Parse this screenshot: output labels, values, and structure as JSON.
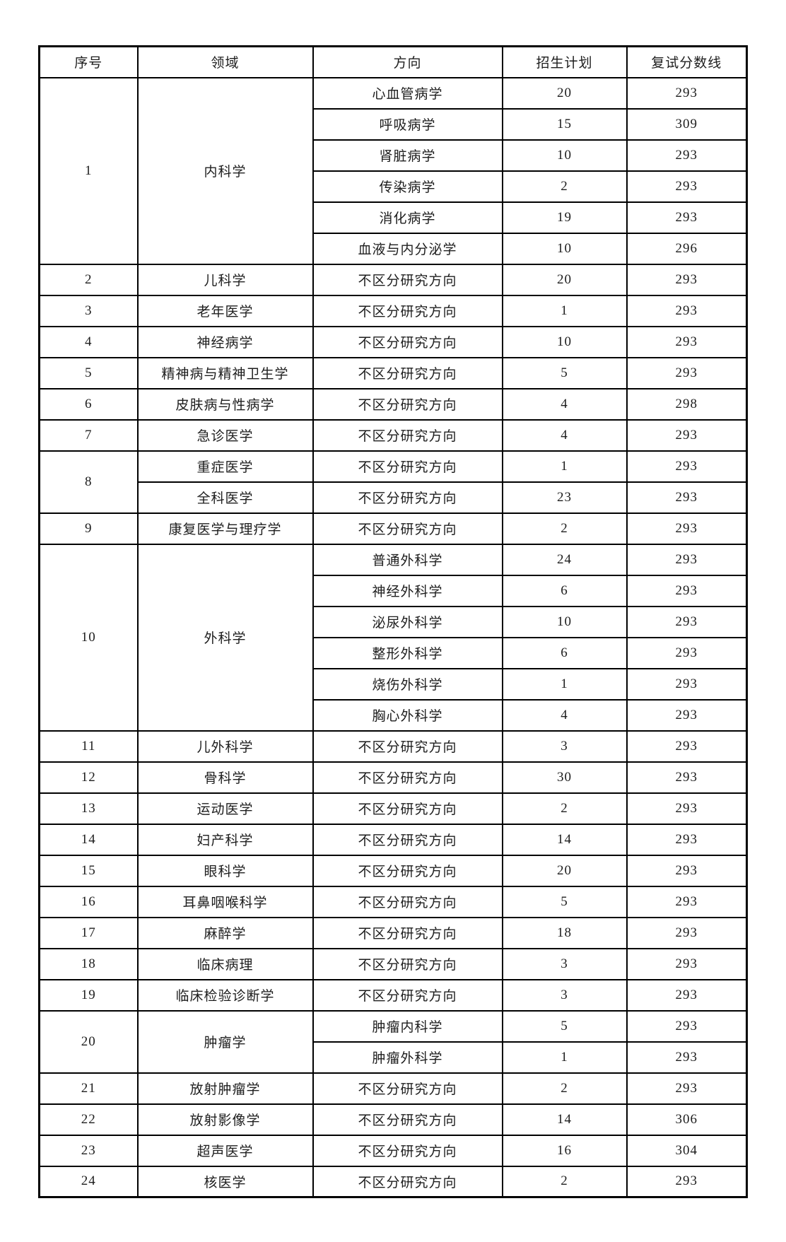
{
  "colors": {
    "border": "#000000",
    "text": "#1d1d1d",
    "background": "#ffffff"
  },
  "table": {
    "columns": [
      "序号",
      "领域",
      "方向",
      "招生计划",
      "复试分数线"
    ],
    "rows": [
      {
        "no": "1",
        "field": "内科学",
        "subs": [
          {
            "dir": "心血管病学",
            "plan": "20",
            "score": "293"
          },
          {
            "dir": "呼吸病学",
            "plan": "15",
            "score": "309"
          },
          {
            "dir": "肾脏病学",
            "plan": "10",
            "score": "293"
          },
          {
            "dir": "传染病学",
            "plan": "2",
            "score": "293"
          },
          {
            "dir": "消化病学",
            "plan": "19",
            "score": "293"
          },
          {
            "dir": "血液与内分泌学",
            "plan": "10",
            "score": "296"
          }
        ]
      },
      {
        "no": "2",
        "field": "儿科学",
        "subs": [
          {
            "dir": "不区分研究方向",
            "plan": "20",
            "score": "293"
          }
        ]
      },
      {
        "no": "3",
        "field": "老年医学",
        "subs": [
          {
            "dir": "不区分研究方向",
            "plan": "1",
            "score": "293"
          }
        ]
      },
      {
        "no": "4",
        "field": "神经病学",
        "subs": [
          {
            "dir": "不区分研究方向",
            "plan": "10",
            "score": "293"
          }
        ]
      },
      {
        "no": "5",
        "field": "精神病与精神卫生学",
        "subs": [
          {
            "dir": "不区分研究方向",
            "plan": "5",
            "score": "293"
          }
        ]
      },
      {
        "no": "6",
        "field": "皮肤病与性病学",
        "subs": [
          {
            "dir": "不区分研究方向",
            "plan": "4",
            "score": "298"
          }
        ]
      },
      {
        "no": "7",
        "field": "急诊医学",
        "subs": [
          {
            "dir": "不区分研究方向",
            "plan": "4",
            "score": "293"
          }
        ]
      },
      {
        "no": "8",
        "field": null,
        "subs": [
          {
            "field": "重症医学",
            "dir": "不区分研究方向",
            "plan": "1",
            "score": "293"
          },
          {
            "field": "全科医学",
            "dir": "不区分研究方向",
            "plan": "23",
            "score": "293"
          }
        ]
      },
      {
        "no": "9",
        "field": "康复医学与理疗学",
        "subs": [
          {
            "dir": "不区分研究方向",
            "plan": "2",
            "score": "293"
          }
        ]
      },
      {
        "no": "10",
        "field": "外科学",
        "subs": [
          {
            "dir": "普通外科学",
            "plan": "24",
            "score": "293"
          },
          {
            "dir": "神经外科学",
            "plan": "6",
            "score": "293"
          },
          {
            "dir": "泌尿外科学",
            "plan": "10",
            "score": "293"
          },
          {
            "dir": "整形外科学",
            "plan": "6",
            "score": "293"
          },
          {
            "dir": "烧伤外科学",
            "plan": "1",
            "score": "293"
          },
          {
            "dir": "胸心外科学",
            "plan": "4",
            "score": "293"
          }
        ]
      },
      {
        "no": "11",
        "field": "儿外科学",
        "subs": [
          {
            "dir": "不区分研究方向",
            "plan": "3",
            "score": "293"
          }
        ]
      },
      {
        "no": "12",
        "field": "骨科学",
        "subs": [
          {
            "dir": "不区分研究方向",
            "plan": "30",
            "score": "293"
          }
        ]
      },
      {
        "no": "13",
        "field": "运动医学",
        "subs": [
          {
            "dir": "不区分研究方向",
            "plan": "2",
            "score": "293"
          }
        ]
      },
      {
        "no": "14",
        "field": "妇产科学",
        "subs": [
          {
            "dir": "不区分研究方向",
            "plan": "14",
            "score": "293"
          }
        ]
      },
      {
        "no": "15",
        "field": "眼科学",
        "subs": [
          {
            "dir": "不区分研究方向",
            "plan": "20",
            "score": "293"
          }
        ]
      },
      {
        "no": "16",
        "field": "耳鼻咽喉科学",
        "subs": [
          {
            "dir": "不区分研究方向",
            "plan": "5",
            "score": "293"
          }
        ]
      },
      {
        "no": "17",
        "field": "麻醉学",
        "subs": [
          {
            "dir": "不区分研究方向",
            "plan": "18",
            "score": "293"
          }
        ]
      },
      {
        "no": "18",
        "field": "临床病理",
        "subs": [
          {
            "dir": "不区分研究方向",
            "plan": "3",
            "score": "293"
          }
        ]
      },
      {
        "no": "19",
        "field": "临床检验诊断学",
        "subs": [
          {
            "dir": "不区分研究方向",
            "plan": "3",
            "score": "293"
          }
        ]
      },
      {
        "no": "20",
        "field": "肿瘤学",
        "subs": [
          {
            "dir": "肿瘤内科学",
            "plan": "5",
            "score": "293"
          },
          {
            "dir": "肿瘤外科学",
            "plan": "1",
            "score": "293"
          }
        ]
      },
      {
        "no": "21",
        "field": "放射肿瘤学",
        "subs": [
          {
            "dir": "不区分研究方向",
            "plan": "2",
            "score": "293"
          }
        ]
      },
      {
        "no": "22",
        "field": "放射影像学",
        "subs": [
          {
            "dir": "不区分研究方向",
            "plan": "14",
            "score": "306"
          }
        ]
      },
      {
        "no": "23",
        "field": "超声医学",
        "subs": [
          {
            "dir": "不区分研究方向",
            "plan": "16",
            "score": "304"
          }
        ]
      },
      {
        "no": "24",
        "field": "核医学",
        "subs": [
          {
            "dir": "不区分研究方向",
            "plan": "2",
            "score": "293"
          }
        ]
      }
    ]
  }
}
